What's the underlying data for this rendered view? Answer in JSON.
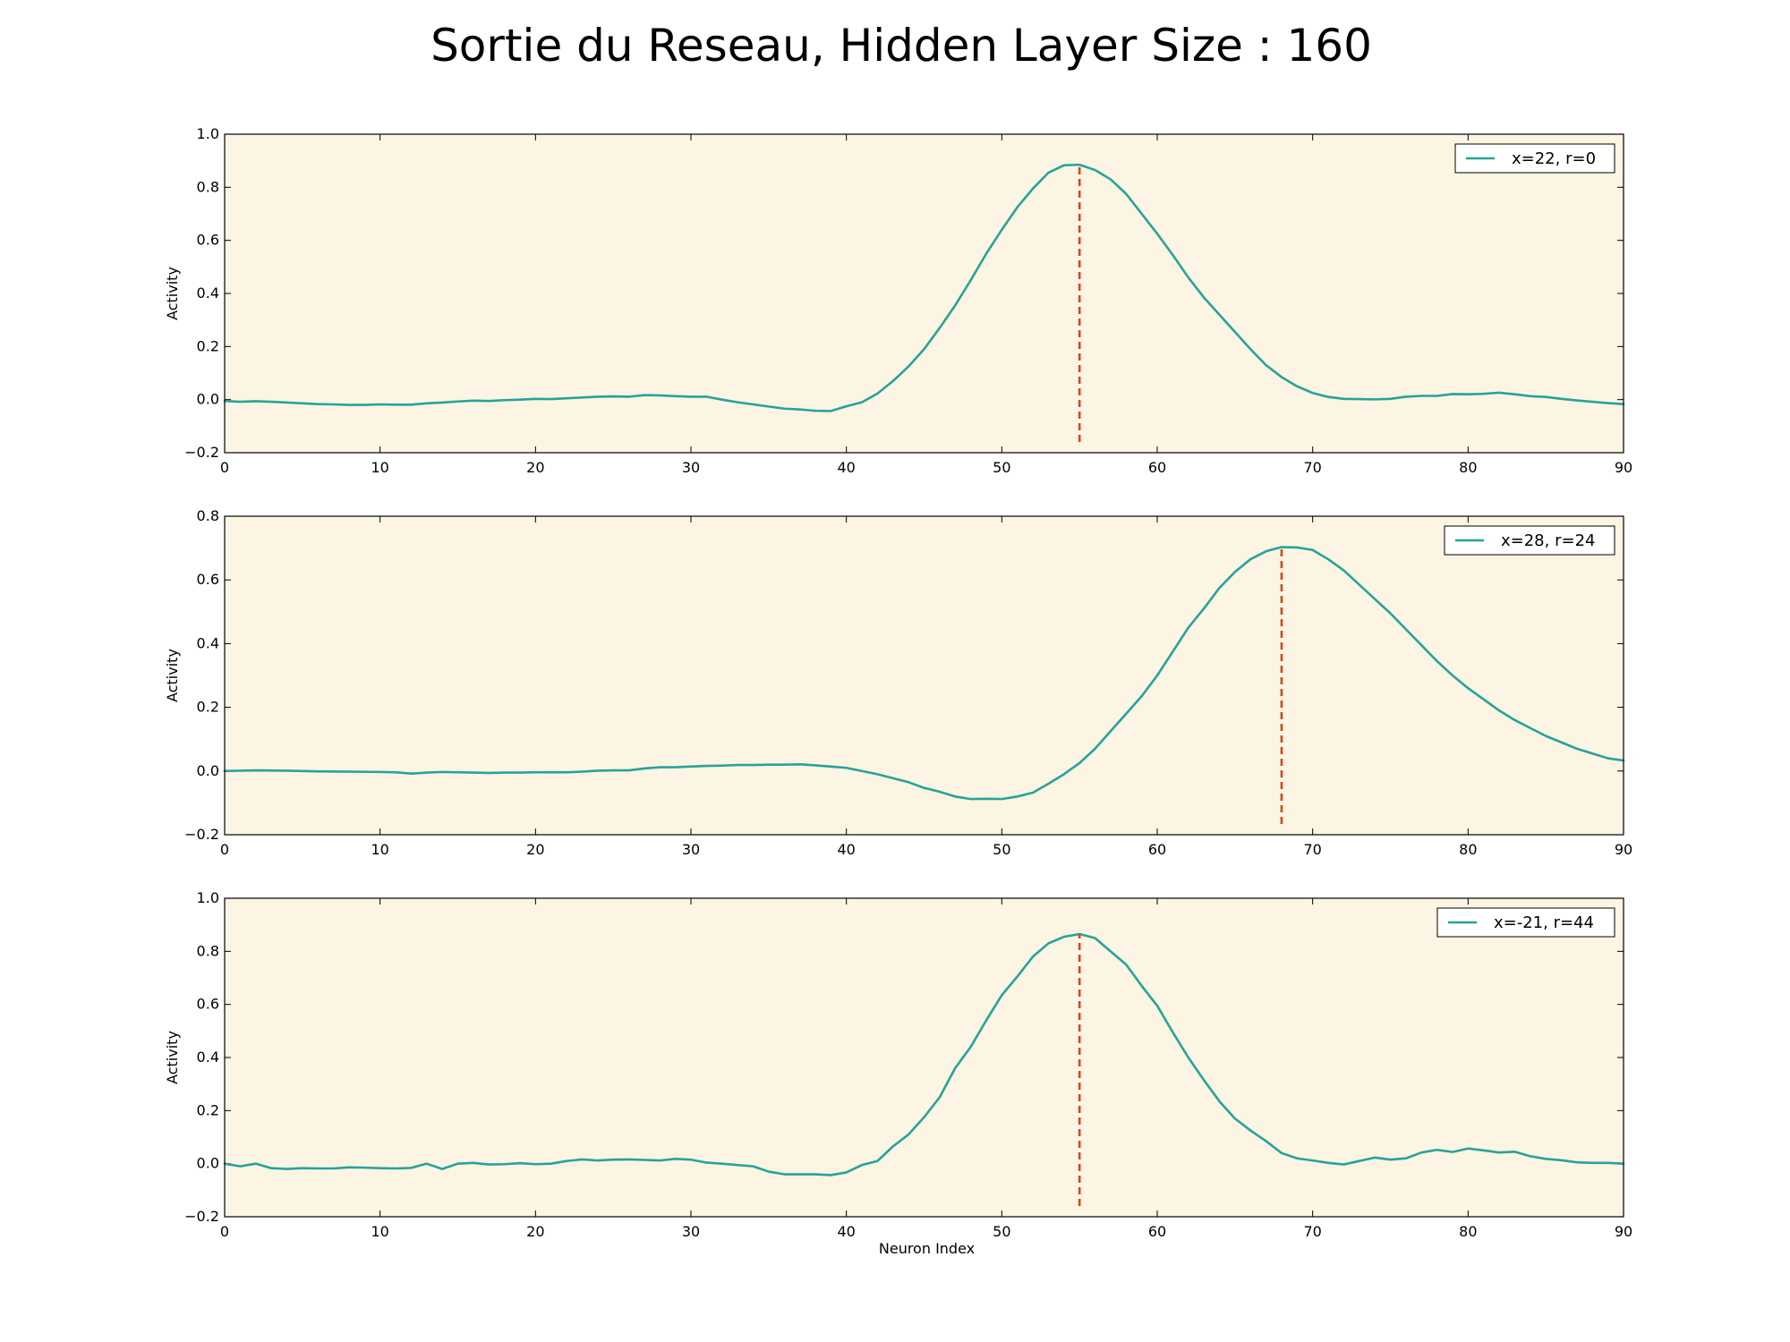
{
  "figure": {
    "title": "Sortie du Reseau, Hidden Layer Size : 160"
  },
  "chart_data": [
    {
      "type": "line",
      "title": "",
      "xlabel": "",
      "ylabel": "Activity",
      "xlim": [
        0,
        90
      ],
      "ylim": [
        -0.2,
        1.0
      ],
      "xticks": [
        0,
        10,
        20,
        30,
        40,
        50,
        60,
        70,
        80,
        90
      ],
      "yticks": [
        -0.2,
        0.0,
        0.2,
        0.4,
        0.6,
        0.8,
        1.0
      ],
      "grid": false,
      "background": "#fcf5e3",
      "legend_position": "top-right",
      "series": [
        {
          "name": "x=22, r=0",
          "color": "#26a39a",
          "x": [
            0,
            1,
            2,
            3,
            4,
            5,
            6,
            7,
            8,
            9,
            10,
            11,
            12,
            13,
            14,
            15,
            16,
            17,
            18,
            19,
            20,
            21,
            22,
            23,
            24,
            25,
            26,
            27,
            28,
            29,
            30,
            31,
            32,
            33,
            34,
            35,
            36,
            37,
            38,
            39,
            40,
            41,
            42,
            43,
            44,
            45,
            46,
            47,
            48,
            49,
            50,
            51,
            52,
            53,
            54,
            55,
            56,
            57,
            58,
            59,
            60,
            61,
            62,
            63,
            64,
            65,
            66,
            67,
            68,
            69,
            70,
            71,
            72,
            73,
            74,
            75,
            76,
            77,
            78,
            79,
            80,
            81,
            82,
            83,
            84,
            85,
            86,
            87,
            88,
            89,
            90
          ],
          "y": [
            -0.005,
            -0.008,
            -0.006,
            -0.008,
            -0.011,
            -0.014,
            -0.017,
            -0.018,
            -0.02,
            -0.02,
            -0.018,
            -0.019,
            -0.019,
            -0.014,
            -0.011,
            -0.007,
            -0.004,
            -0.005,
            -0.002,
            0.0,
            0.003,
            0.002,
            0.005,
            0.008,
            0.011,
            0.012,
            0.011,
            0.017,
            0.016,
            0.013,
            0.011,
            0.011,
            0.0,
            -0.01,
            -0.018,
            -0.026,
            -0.034,
            -0.037,
            -0.042,
            -0.043,
            -0.025,
            -0.01,
            0.023,
            0.07,
            0.125,
            0.19,
            0.27,
            0.355,
            0.45,
            0.55,
            0.64,
            0.725,
            0.795,
            0.855,
            0.883,
            0.885,
            0.865,
            0.83,
            0.775,
            0.7,
            0.625,
            0.545,
            0.46,
            0.385,
            0.32,
            0.255,
            0.19,
            0.13,
            0.085,
            0.05,
            0.025,
            0.01,
            0.003,
            0.002,
            0.001,
            0.003,
            0.011,
            0.014,
            0.014,
            0.021,
            0.02,
            0.022,
            0.026,
            0.02,
            0.013,
            0.01,
            0.003,
            -0.003,
            -0.008,
            -0.013,
            -0.017
          ]
        }
      ],
      "vline": {
        "x": 55,
        "ymax": 0.885,
        "color": "#d9441a",
        "style": "dashed"
      }
    },
    {
      "type": "line",
      "title": "",
      "xlabel": "",
      "ylabel": "Activity",
      "xlim": [
        0,
        90
      ],
      "ylim": [
        -0.2,
        0.8
      ],
      "xticks": [
        0,
        10,
        20,
        30,
        40,
        50,
        60,
        70,
        80,
        90
      ],
      "yticks": [
        -0.2,
        0.0,
        0.2,
        0.4,
        0.6,
        0.8
      ],
      "grid": false,
      "background": "#fcf5e3",
      "legend_position": "top-right",
      "series": [
        {
          "name": "x=28, r=24",
          "color": "#26a39a",
          "x": [
            0,
            2,
            4,
            6,
            8,
            10,
            11,
            12,
            13,
            14,
            15,
            16,
            17,
            18,
            19,
            20,
            21,
            22,
            23,
            24,
            25,
            26,
            27,
            28,
            29,
            30,
            31,
            32,
            33,
            34,
            35,
            36,
            37,
            38,
            39,
            40,
            42,
            44,
            45,
            46,
            47,
            48,
            49,
            50,
            51,
            52,
            53,
            54,
            55,
            56,
            57,
            58,
            59,
            60,
            61,
            62,
            63,
            64,
            65,
            66,
            67,
            68,
            69,
            70,
            71,
            72,
            73,
            74,
            75,
            76,
            77,
            78,
            79,
            80,
            81,
            82,
            83,
            84,
            85,
            86,
            87,
            88,
            89,
            90
          ],
          "y": [
            0.0,
            0.002,
            0.001,
            -0.001,
            -0.002,
            -0.003,
            -0.004,
            -0.008,
            -0.005,
            -0.003,
            -0.004,
            -0.005,
            -0.006,
            -0.005,
            -0.005,
            -0.004,
            -0.004,
            -0.004,
            -0.002,
            0.001,
            0.002,
            0.002,
            0.008,
            0.012,
            0.012,
            0.014,
            0.016,
            0.017,
            0.019,
            0.019,
            0.02,
            0.02,
            0.021,
            0.018,
            0.014,
            0.01,
            -0.01,
            -0.035,
            -0.053,
            -0.065,
            -0.08,
            -0.088,
            -0.087,
            -0.088,
            -0.08,
            -0.068,
            -0.04,
            -0.01,
            0.025,
            0.07,
            0.125,
            0.18,
            0.235,
            0.3,
            0.375,
            0.45,
            0.51,
            0.575,
            0.625,
            0.665,
            0.69,
            0.703,
            0.702,
            0.694,
            0.665,
            0.63,
            0.585,
            0.54,
            0.495,
            0.445,
            0.395,
            0.345,
            0.3,
            0.26,
            0.225,
            0.19,
            0.16,
            0.135,
            0.11,
            0.09,
            0.07,
            0.055,
            0.04,
            0.033
          ]
        }
      ],
      "vline": {
        "x": 68,
        "ymax": 0.703,
        "color": "#d9441a",
        "style": "dashed"
      }
    },
    {
      "type": "line",
      "title": "",
      "xlabel": "Neuron Index",
      "ylabel": "Activity",
      "xlim": [
        0,
        90
      ],
      "ylim": [
        -0.2,
        1.0
      ],
      "xticks": [
        0,
        10,
        20,
        30,
        40,
        50,
        60,
        70,
        80,
        90
      ],
      "yticks": [
        -0.2,
        0.0,
        0.2,
        0.4,
        0.6,
        0.8,
        1.0
      ],
      "grid": false,
      "background": "#fcf5e3",
      "legend_position": "top-right",
      "series": [
        {
          "name": "x=-21, r=44",
          "color": "#26a39a",
          "x": [
            0,
            1,
            2,
            3,
            4,
            5,
            6,
            7,
            8,
            9,
            10,
            11,
            12,
            13,
            14,
            15,
            16,
            17,
            18,
            19,
            20,
            21,
            22,
            23,
            24,
            25,
            26,
            27,
            28,
            29,
            30,
            31,
            32,
            33,
            34,
            35,
            36,
            37,
            38,
            39,
            40,
            41,
            42,
            43,
            44,
            45,
            46,
            47,
            48,
            49,
            50,
            51,
            52,
            53,
            54,
            55,
            56,
            57,
            58,
            59,
            60,
            61,
            62,
            63,
            64,
            65,
            66,
            67,
            68,
            69,
            70,
            71,
            72,
            73,
            74,
            75,
            76,
            77,
            78,
            79,
            80,
            81,
            82,
            83,
            84,
            85,
            86,
            87,
            88,
            89,
            90
          ],
          "y": [
            0.0,
            -0.01,
            0.0,
            -0.017,
            -0.02,
            -0.017,
            -0.018,
            -0.018,
            -0.014,
            -0.015,
            -0.017,
            -0.018,
            -0.016,
            0.0,
            -0.02,
            0.0,
            0.003,
            -0.003,
            -0.002,
            0.002,
            -0.002,
            0.0,
            0.01,
            0.016,
            0.012,
            0.015,
            0.016,
            0.014,
            0.012,
            0.018,
            0.015,
            0.004,
            0.0,
            -0.005,
            -0.01,
            -0.03,
            -0.04,
            -0.04,
            -0.04,
            -0.043,
            -0.033,
            -0.005,
            0.01,
            0.065,
            0.11,
            0.175,
            0.25,
            0.36,
            0.44,
            0.54,
            0.635,
            0.705,
            0.78,
            0.83,
            0.855,
            0.865,
            0.85,
            0.8,
            0.75,
            0.67,
            0.595,
            0.495,
            0.4,
            0.315,
            0.235,
            0.17,
            0.125,
            0.085,
            0.04,
            0.02,
            0.012,
            0.003,
            -0.003,
            0.01,
            0.023,
            0.015,
            0.02,
            0.042,
            0.052,
            0.044,
            0.057,
            0.05,
            0.042,
            0.045,
            0.028,
            0.018,
            0.013,
            0.005,
            0.003,
            0.003,
            0.0
          ]
        }
      ],
      "vline": {
        "x": 55,
        "ymax": 0.865,
        "color": "#d9441a",
        "style": "dashed"
      }
    }
  ]
}
